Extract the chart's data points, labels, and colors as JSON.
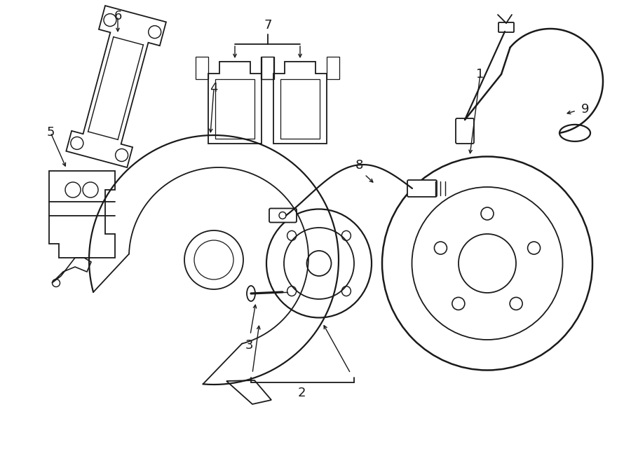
{
  "background_color": "#ffffff",
  "line_color": "#1a1a1a",
  "line_width": 1.3,
  "figsize": [
    9.0,
    6.61
  ],
  "dpi": 100,
  "xlim": [
    0,
    9
  ],
  "ylim": [
    0,
    6.61
  ]
}
